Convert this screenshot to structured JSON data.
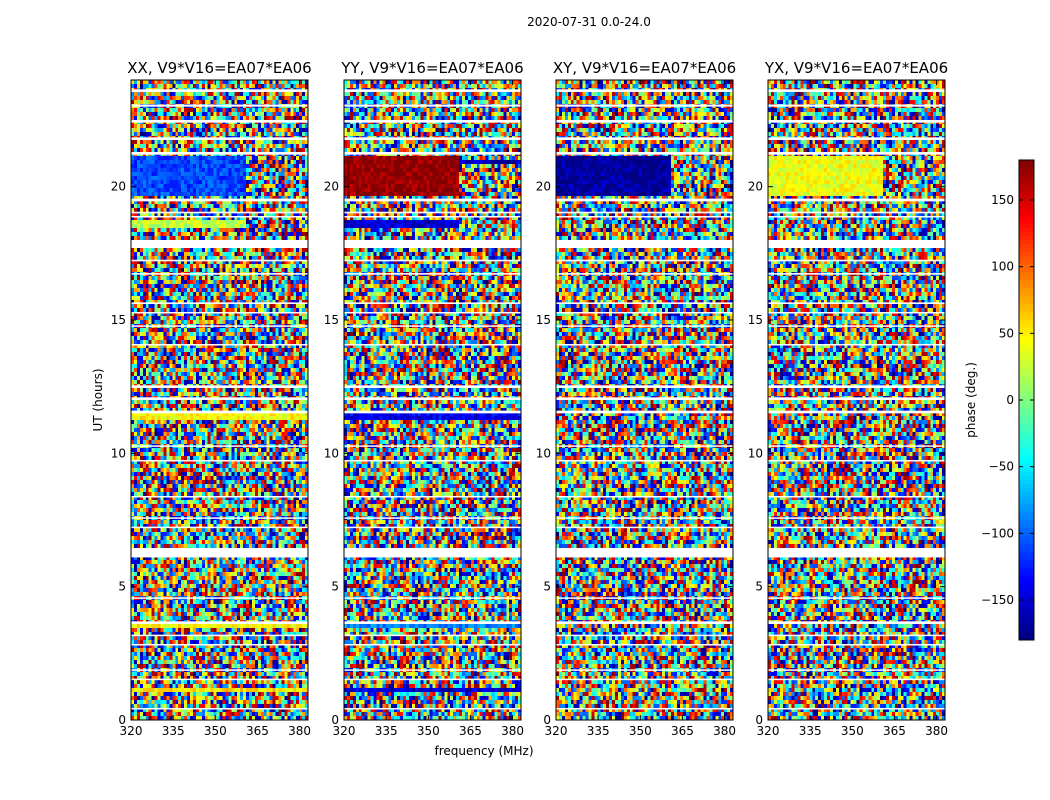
{
  "chart_data": {
    "type": "heatmap",
    "title": "2020-07-31 0.0-24.0",
    "xlabel": "frequency (MHz)",
    "ylabel": "UT (hours)",
    "xlim": [
      320,
      383
    ],
    "ylim": [
      0,
      24
    ],
    "x_ticks": [
      320,
      335,
      350,
      365,
      380
    ],
    "y_ticks": [
      0,
      5,
      10,
      15,
      20
    ],
    "colorbar": {
      "label": "phase (deg.)",
      "range": [
        -180,
        180
      ],
      "ticks": [
        -150,
        -100,
        -50,
        0,
        50,
        100,
        150
      ],
      "colormap": "jet"
    },
    "panels": [
      {
        "title": "XX, V9*V16=EA07*EA06",
        "coherent_bands": [
          {
            "t0": 19.6,
            "t1": 21.2,
            "phase": -110,
            "f_end": 361
          },
          {
            "t0": 18.4,
            "t1": 18.8,
            "phase": 20,
            "f_end": 361
          },
          {
            "t0": 11.3,
            "t1": 11.5,
            "phase": 45,
            "f_end": 383
          },
          {
            "t0": 3.4,
            "t1": 3.6,
            "phase": 45,
            "f_end": 383
          },
          {
            "t0": 1.0,
            "t1": 1.2,
            "phase": 55,
            "f_end": 383
          }
        ]
      },
      {
        "title": "YY, V9*V16=EA07*EA06",
        "coherent_bands": [
          {
            "t0": 19.6,
            "t1": 21.2,
            "phase": 175,
            "f_end": 361
          },
          {
            "t0": 20.8,
            "t1": 21.0,
            "phase": -160,
            "f_end": 383
          },
          {
            "t0": 18.4,
            "t1": 18.8,
            "phase": -150,
            "f_end": 361
          },
          {
            "t0": 11.3,
            "t1": 11.5,
            "phase": -140,
            "f_end": 383
          },
          {
            "t0": 3.4,
            "t1": 3.6,
            "phase": -90,
            "f_end": 383
          },
          {
            "t0": 1.0,
            "t1": 1.2,
            "phase": -150,
            "f_end": 383
          }
        ]
      },
      {
        "title": "XY, V9*V16=EA07*EA06",
        "coherent_bands": [
          {
            "t0": 19.6,
            "t1": 21.2,
            "phase": -170,
            "f_end": 361
          }
        ]
      },
      {
        "title": "YX, V9*V16=EA07*EA06",
        "coherent_bands": [
          {
            "t0": 19.6,
            "t1": 21.2,
            "phase": 40,
            "f_end": 361
          }
        ]
      }
    ],
    "flagged_time_ranges": [
      [
        23.55,
        23.65
      ],
      [
        23.0,
        23.08
      ],
      [
        22.4,
        22.5
      ],
      [
        21.75,
        21.85
      ],
      [
        21.2,
        21.3
      ],
      [
        19.45,
        19.55
      ],
      [
        19.0,
        19.06
      ],
      [
        18.85,
        18.9
      ],
      [
        17.7,
        18.0
      ],
      [
        17.2,
        17.26
      ],
      [
        16.7,
        16.76
      ],
      [
        15.6,
        15.66
      ],
      [
        15.25,
        15.3
      ],
      [
        14.75,
        14.8
      ],
      [
        14.05,
        14.1
      ],
      [
        12.45,
        12.55
      ],
      [
        12.0,
        12.1
      ],
      [
        11.5,
        11.6
      ],
      [
        10.25,
        10.3
      ],
      [
        9.7,
        9.75
      ],
      [
        8.35,
        8.4
      ],
      [
        7.55,
        7.6
      ],
      [
        7.2,
        7.25
      ],
      [
        6.4,
        6.1
      ],
      [
        4.55,
        4.6
      ],
      [
        3.6,
        3.7
      ],
      [
        3.15,
        3.2
      ],
      [
        2.8,
        2.85
      ],
      [
        1.85,
        1.9
      ],
      [
        1.5,
        1.55
      ],
      [
        0.4,
        0.45
      ]
    ],
    "gap_range": [
      6.1,
      6.45
    ]
  }
}
